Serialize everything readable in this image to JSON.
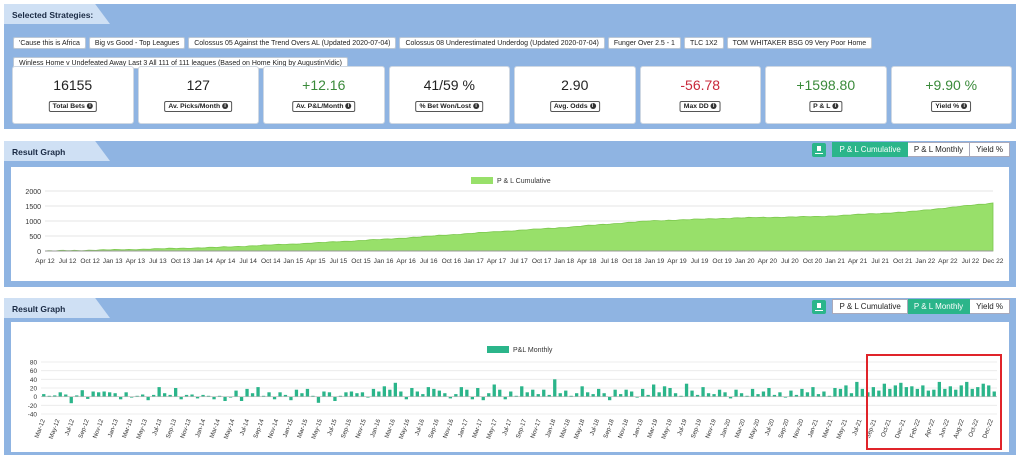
{
  "strategies": {
    "title": "Selected Strategies:",
    "items": [
      "'Cause this is Africa",
      "Big vs Good - Top Leagues",
      "Colossus 05 Against the Trend Overs AL (Updated 2020-07-04)",
      "Colossus 08 Underestimated Underdog (Updated 2020-07-04)",
      "Funger Over 2.5 - 1",
      "TLC 1X2",
      "TOM WHITAKER BSG 09 Very Poor Home",
      "Winless Home v Undefeated Away Last 3 All 111 of 111 leagues (Based on Home King by AugustinVidic)"
    ]
  },
  "stats": [
    {
      "value": "16155",
      "label": "Total Bets",
      "color": "#222222"
    },
    {
      "value": "127",
      "label": "Av. Picks/Month",
      "color": "#222222"
    },
    {
      "value": "+12.16",
      "label": "Av. P&L/Month",
      "color": "#3a8a3a"
    },
    {
      "value": "41/59 %",
      "label": "% Bet Won/Lost",
      "color": "#222222"
    },
    {
      "value": "2.90",
      "label": "Avg. Odds",
      "color": "#222222"
    },
    {
      "value": "-56.78",
      "label": "Max DD",
      "color": "#c8283a"
    },
    {
      "value": "+1598.80",
      "label": "P & L",
      "color": "#3a8a3a"
    },
    {
      "value": "+9.90 %",
      "label": "Yield %",
      "color": "#3a8a3a"
    }
  ],
  "graph1": {
    "title": "Result Graph",
    "buttons": [
      "P & L Cumulative",
      "P & L Monthly",
      "Yield %"
    ],
    "active": 0
  },
  "graph2": {
    "title": "Result Graph",
    "buttons": [
      "P & L Cumulative",
      "P & L Monthly",
      "Yield %"
    ],
    "active": 1
  },
  "chart_data": [
    {
      "type": "area",
      "legend": "P & L Cumulative",
      "legend_position": "top",
      "color": "#98e06a",
      "ylim": [
        0,
        2000
      ],
      "yticks": [
        0,
        500,
        1000,
        1500,
        2000
      ],
      "xticks": [
        "Apr 12",
        "Jul 12",
        "Oct 12",
        "Jan 13",
        "Apr 13",
        "Jul 13",
        "Oct 13",
        "Jan 14",
        "Apr 14",
        "Jul 14",
        "Oct 14",
        "Jan 15",
        "Apr 15",
        "Jul 15",
        "Oct 15",
        "Jan 16",
        "Apr 16",
        "Jul 16",
        "Oct 16",
        "Jan 17",
        "Apr 17",
        "Jul 17",
        "Oct 17",
        "Jan 18",
        "Apr 18",
        "Jul 18",
        "Oct 18",
        "Jan 19",
        "Apr 19",
        "Jul 19",
        "Oct 19",
        "Jan 20",
        "Apr 20",
        "Jul 20",
        "Oct 20",
        "Jan 21",
        "Apr 21",
        "Jul 21",
        "Oct 21",
        "Jan 22",
        "Apr 22",
        "Jul 22",
        "Dec 22"
      ],
      "x": [
        "Mar 12",
        "Jan 13",
        "Jan 14",
        "Jan 15",
        "Jan 16",
        "Jan 17",
        "Jan 18",
        "Jan 19",
        "Jan 20",
        "Jan 21",
        "Jan 22",
        "Dec 22"
      ],
      "values": [
        0,
        50,
        120,
        250,
        400,
        600,
        780,
        1000,
        1100,
        1150,
        1300,
        1600
      ]
    },
    {
      "type": "bar",
      "legend": "P&L Monthly",
      "legend_position": "top",
      "color": "#2bb58a",
      "ylim": [
        -40,
        80
      ],
      "yticks": [
        -40,
        -20,
        0,
        20,
        40,
        60,
        80
      ],
      "xticks": [
        "Mar-12",
        "May-12",
        "Jul-12",
        "Sep-12",
        "Nov-12",
        "Jan-13",
        "Mar-13",
        "May-13",
        "Jul-13",
        "Sep-13",
        "Nov-13",
        "Jan-14",
        "Mar-14",
        "May-14",
        "Jul-14",
        "Sep-14",
        "Nov-14",
        "Jan-15",
        "Mar-15",
        "May-15",
        "Jul-15",
        "Sep-15",
        "Nov-15",
        "Jan-16",
        "Mar-16",
        "May-16",
        "Jul-16",
        "Sep-16",
        "Nov-16",
        "Jan-17",
        "Mar-17",
        "May-17",
        "Jul-17",
        "Sep-17",
        "Nov-17",
        "Jan-18",
        "Mar-18",
        "May-18",
        "Jul-18",
        "Sep-18",
        "Nov-18",
        "Jan-19",
        "Mar-19",
        "May-19",
        "Jul-19",
        "Sep-19",
        "Nov-19",
        "Jan-20",
        "Mar-20",
        "May-20",
        "Jul-20",
        "Sep-20",
        "Nov-20",
        "Jan-21",
        "Mar-21",
        "May-21",
        "Jul-21",
        "Sep-21",
        "Oct-21",
        "Dec-21",
        "Feb-22",
        "Apr-22",
        "Jun-22",
        "Aug-22",
        "Oct-22",
        "Dec-22"
      ],
      "values": [
        6,
        2,
        3,
        10,
        5,
        -15,
        3,
        15,
        -5,
        12,
        10,
        12,
        10,
        8,
        -6,
        10,
        -2,
        2,
        5,
        -8,
        4,
        22,
        8,
        4,
        20,
        -6,
        4,
        5,
        -4,
        4,
        2,
        -6,
        2,
        -10,
        -2,
        14,
        -10,
        18,
        8,
        22,
        2,
        10,
        -6,
        10,
        4,
        -8,
        16,
        8,
        18,
        2,
        -14,
        12,
        10,
        -10,
        2,
        10,
        12,
        8,
        10,
        -2,
        18,
        12,
        24,
        16,
        32,
        12,
        -6,
        20,
        12,
        6,
        22,
        18,
        14,
        8,
        -4,
        6,
        22,
        16,
        -6,
        20,
        -8,
        8,
        28,
        16,
        -6,
        12,
        2,
        24,
        10,
        16,
        6,
        16,
        4,
        40,
        8,
        14,
        2,
        8,
        24,
        10,
        6,
        18,
        8,
        -8,
        16,
        6,
        16,
        12,
        -2,
        18,
        4,
        28,
        10,
        24,
        20,
        8,
        2,
        30,
        14,
        4,
        22,
        8,
        6,
        16,
        10,
        -4,
        16,
        8,
        2,
        18,
        6,
        12,
        20,
        4,
        10,
        -2,
        14,
        4,
        18,
        10,
        22,
        6,
        12,
        2,
        20,
        18,
        26,
        8,
        34,
        18,
        10,
        22,
        14,
        30,
        18,
        26,
        32,
        22,
        24,
        18,
        26,
        14,
        16,
        34,
        18,
        24,
        16,
        26,
        34,
        18,
        22,
        30,
        26,
        12
      ]
    }
  ]
}
